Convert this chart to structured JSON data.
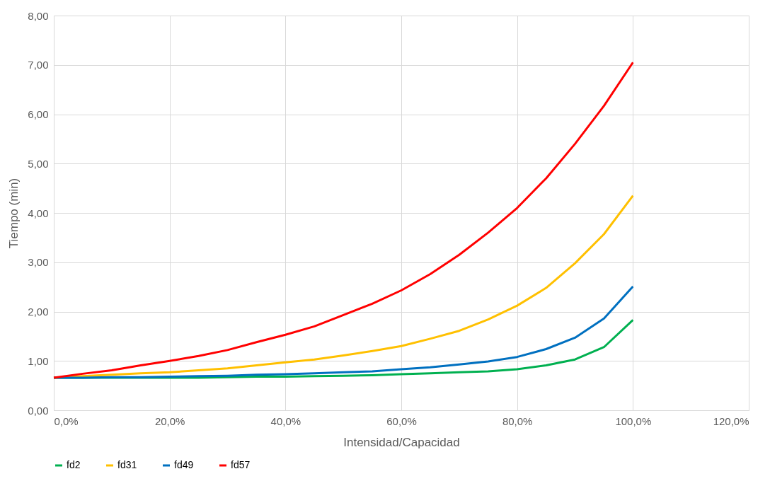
{
  "chart_data": {
    "type": "line",
    "xlabel": "Intensidad/Capacidad",
    "ylabel": "Tiempo (min)",
    "x": [
      0,
      5,
      10,
      15,
      20,
      25,
      30,
      35,
      40,
      45,
      50,
      55,
      60,
      65,
      70,
      75,
      80,
      85,
      90,
      95,
      100
    ],
    "series": [
      {
        "name": "fd2",
        "color": "#00b050",
        "values": [
          0.66,
          0.66,
          0.66,
          0.66,
          0.66,
          0.66,
          0.67,
          0.68,
          0.68,
          0.69,
          0.7,
          0.71,
          0.73,
          0.75,
          0.77,
          0.79,
          0.83,
          0.91,
          1.03,
          1.28,
          1.83
        ]
      },
      {
        "name": "fd31",
        "color": "#ffc000",
        "values": [
          0.66,
          0.69,
          0.72,
          0.75,
          0.77,
          0.81,
          0.85,
          0.91,
          0.97,
          1.03,
          1.11,
          1.2,
          1.3,
          1.45,
          1.61,
          1.84,
          2.12,
          2.48,
          2.98,
          3.57,
          4.35
        ]
      },
      {
        "name": "fd49",
        "color": "#0070c0",
        "values": [
          0.66,
          0.66,
          0.67,
          0.67,
          0.68,
          0.69,
          0.7,
          0.72,
          0.73,
          0.75,
          0.77,
          0.79,
          0.83,
          0.87,
          0.93,
          0.99,
          1.08,
          1.24,
          1.47,
          1.86,
          2.51
        ]
      },
      {
        "name": "fd57",
        "color": "#ff0000",
        "values": [
          0.66,
          0.74,
          0.81,
          0.91,
          1.0,
          1.1,
          1.22,
          1.38,
          1.53,
          1.7,
          1.93,
          2.16,
          2.43,
          2.76,
          3.15,
          3.6,
          4.1,
          4.7,
          5.4,
          6.17,
          7.05
        ]
      }
    ],
    "xlim": [
      0,
      120
    ],
    "xticks": [
      {
        "value": 0,
        "label": "0,0%"
      },
      {
        "value": 20,
        "label": "20,0%"
      },
      {
        "value": 40,
        "label": "40,0%"
      },
      {
        "value": 60,
        "label": "60,0%"
      },
      {
        "value": 80,
        "label": "80,0%"
      },
      {
        "value": 100,
        "label": "100,0%"
      },
      {
        "value": 120,
        "label": "120,0%"
      }
    ],
    "ylim": [
      0,
      8
    ],
    "yticks": [
      {
        "value": 0,
        "label": "0,00"
      },
      {
        "value": 1,
        "label": "1,00"
      },
      {
        "value": 2,
        "label": "2,00"
      },
      {
        "value": 3,
        "label": "3,00"
      },
      {
        "value": 4,
        "label": "4,00"
      },
      {
        "value": 5,
        "label": "5,00"
      },
      {
        "value": 6,
        "label": "6,00"
      },
      {
        "value": 7,
        "label": "7,00"
      },
      {
        "value": 8,
        "label": "8,00"
      }
    ],
    "grid": true,
    "legend": "bottom",
    "marker": "none",
    "line_style": "solid"
  }
}
